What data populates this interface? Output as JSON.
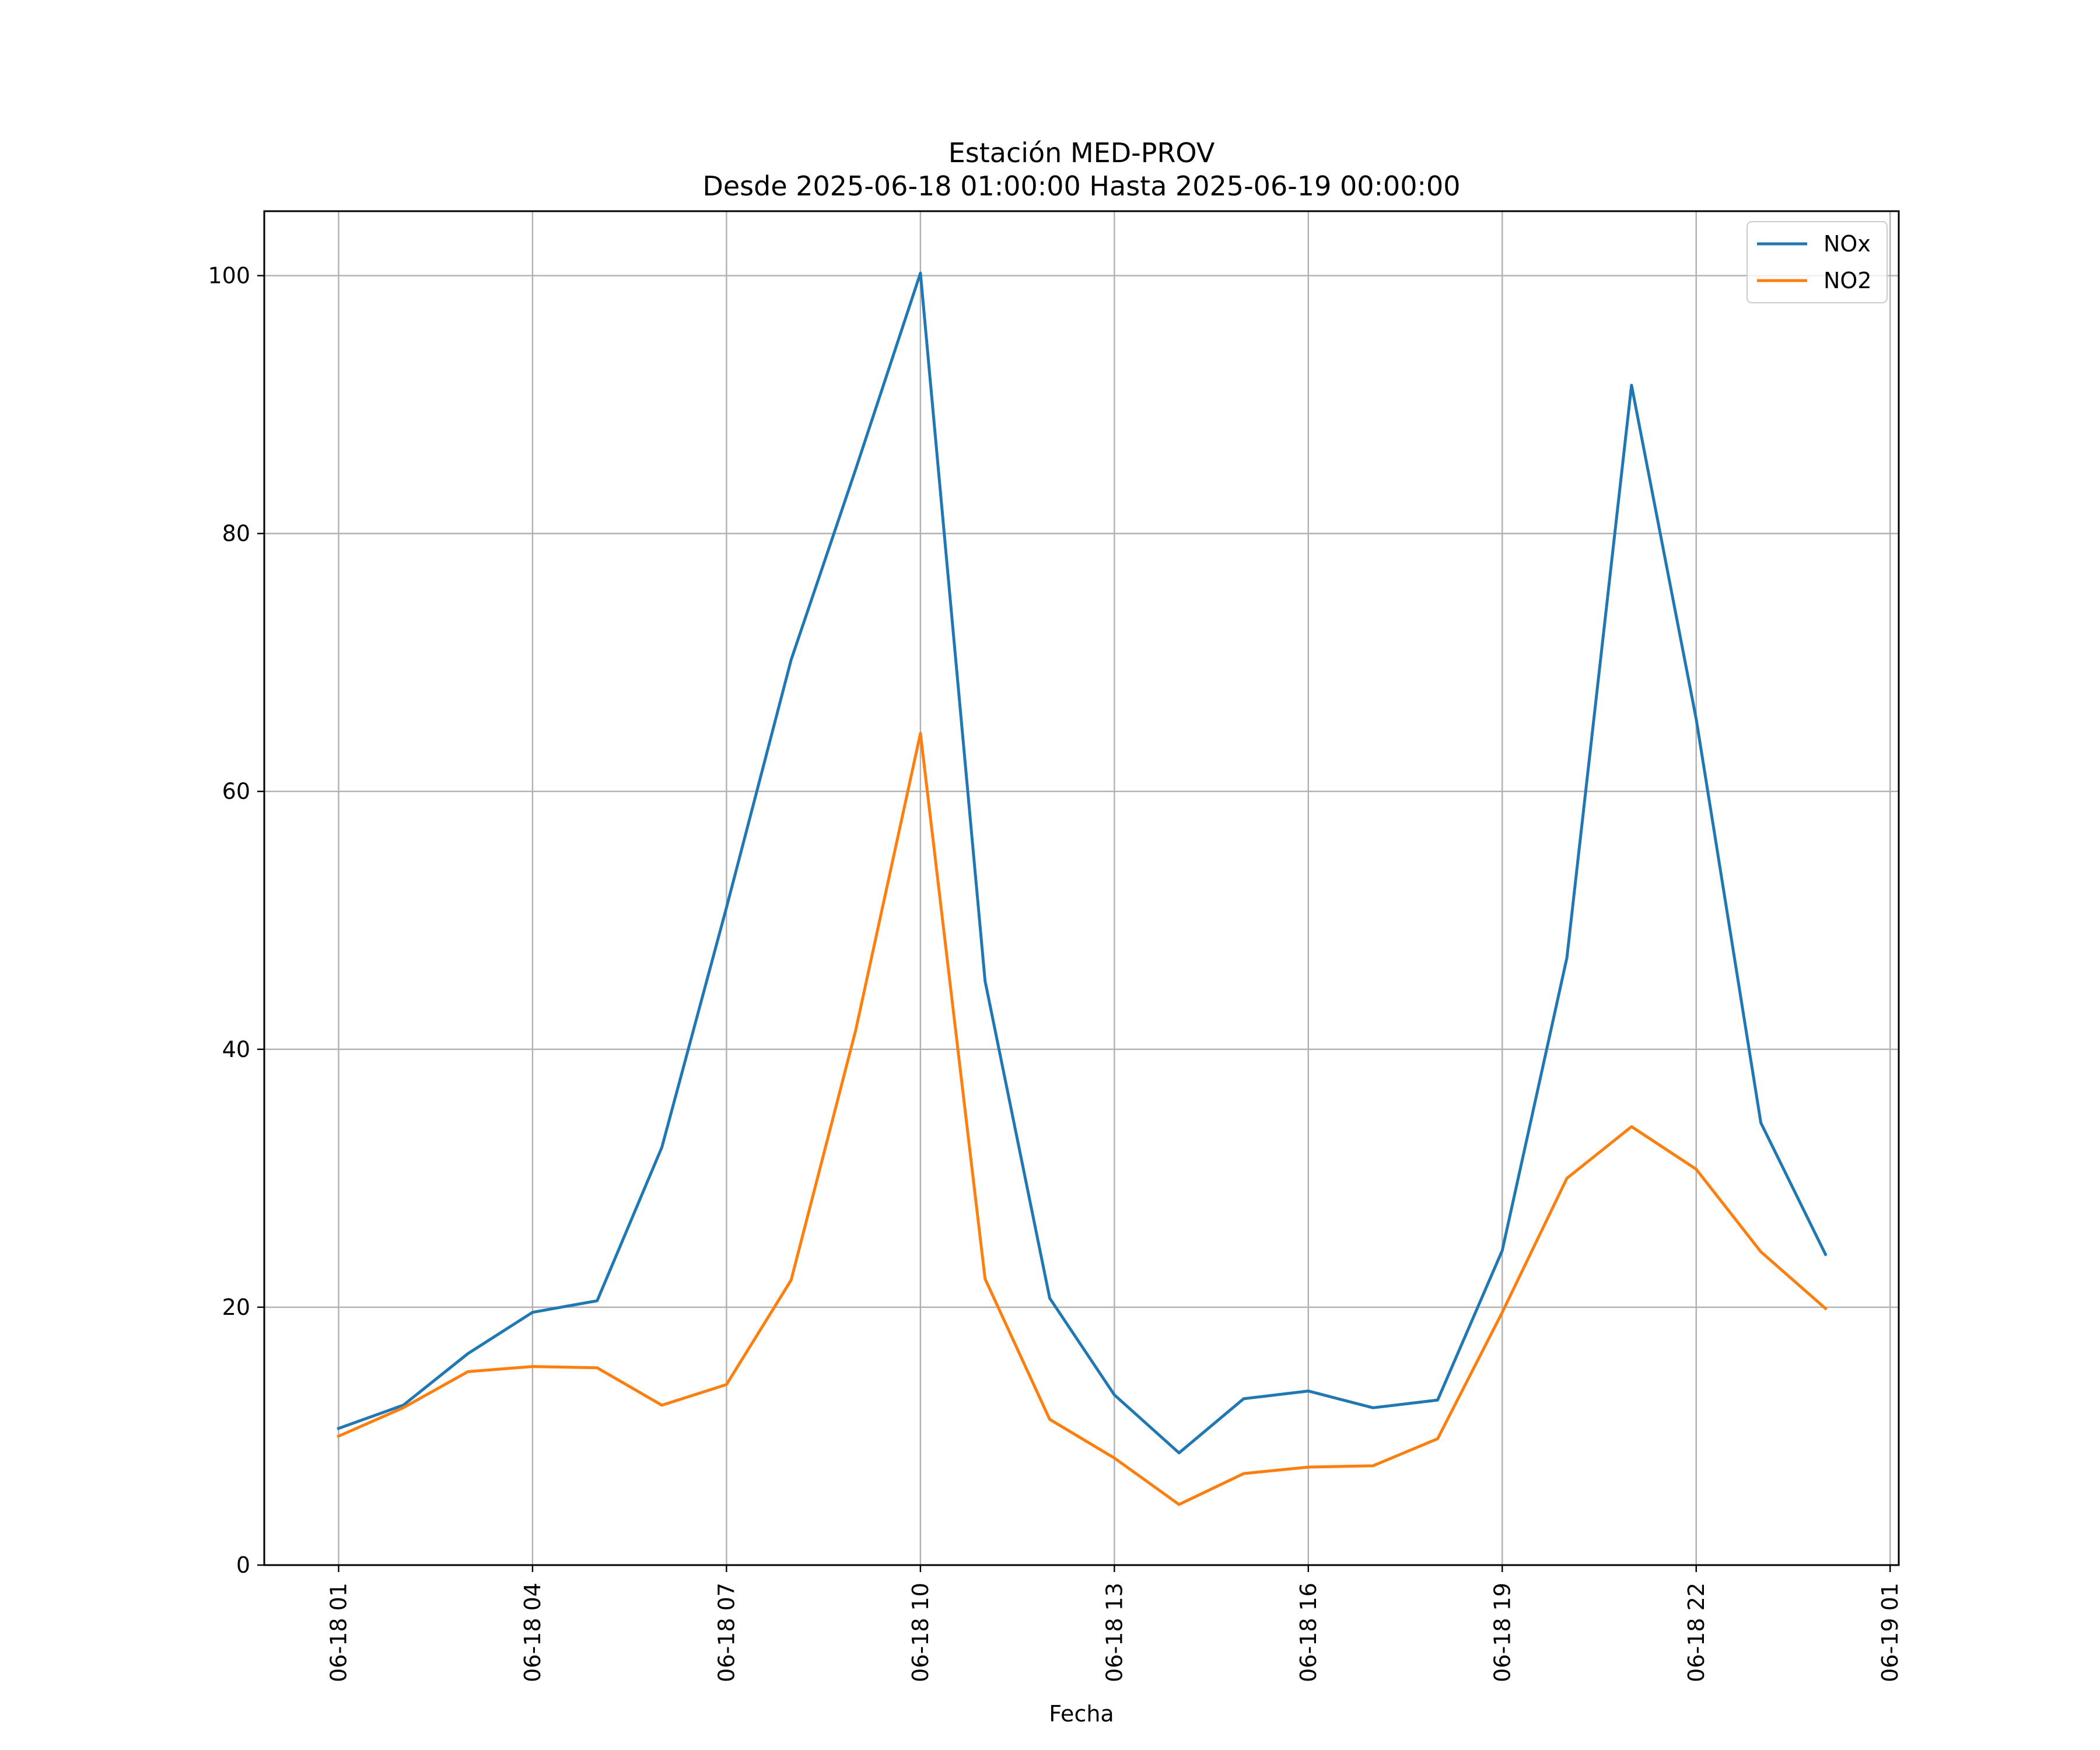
{
  "chart_data": {
    "type": "line",
    "title": "Estación MED-PROV",
    "subtitle": "Desde 2025-06-18 01:00:00 Hasta 2025-06-19 00:00:00",
    "xlabel": "Fecha",
    "ylabel": "",
    "x": [
      "2025-06-18 01:00",
      "2025-06-18 02:00",
      "2025-06-18 03:00",
      "2025-06-18 04:00",
      "2025-06-18 05:00",
      "2025-06-18 06:00",
      "2025-06-18 07:00",
      "2025-06-18 08:00",
      "2025-06-18 09:00",
      "2025-06-18 10:00",
      "2025-06-18 11:00",
      "2025-06-18 12:00",
      "2025-06-18 13:00",
      "2025-06-18 14:00",
      "2025-06-18 15:00",
      "2025-06-18 16:00",
      "2025-06-18 17:00",
      "2025-06-18 18:00",
      "2025-06-18 19:00",
      "2025-06-18 20:00",
      "2025-06-18 21:00",
      "2025-06-18 22:00",
      "2025-06-18 23:00",
      "2025-06-19 00:00"
    ],
    "series": [
      {
        "name": "NOx",
        "color": "#1f77b4",
        "values": [
          10.6,
          12.4,
          16.4,
          19.6,
          20.5,
          32.4,
          51.0,
          70.2,
          85.0,
          100.2,
          45.3,
          20.7,
          13.2,
          8.7,
          12.9,
          13.5,
          12.2,
          12.8,
          24.4,
          47.1,
          91.5,
          65.6,
          34.3,
          24.1
        ]
      },
      {
        "name": "NO2",
        "color": "#ff7f0e",
        "values": [
          10.0,
          12.2,
          15.0,
          15.4,
          15.3,
          12.4,
          14.0,
          22.1,
          41.5,
          64.5,
          22.2,
          11.3,
          8.3,
          4.7,
          7.1,
          7.6,
          7.7,
          9.8,
          19.6,
          30.0,
          34.0,
          30.7,
          24.3,
          19.9
        ]
      }
    ],
    "xticks": [
      "06-18 01",
      "06-18 04",
      "06-18 07",
      "06-18 10",
      "06-18 13",
      "06-18 16",
      "06-18 19",
      "06-18 22",
      "06-19 01"
    ],
    "xlim": [
      "2025-06-17 23:51",
      "2025-06-19 01:08"
    ],
    "yticks": [
      "0",
      "20",
      "40",
      "60",
      "80",
      "100"
    ],
    "ylim": [
      0,
      105
    ],
    "grid": true,
    "legend_position": "upper-right"
  }
}
